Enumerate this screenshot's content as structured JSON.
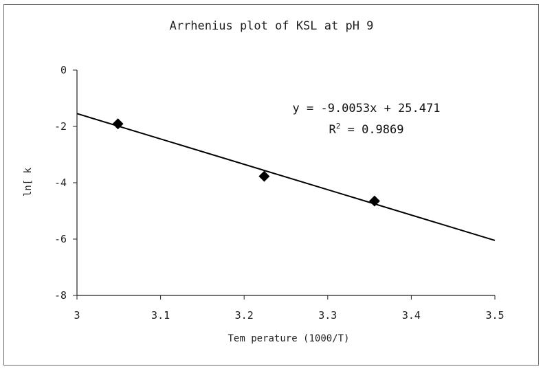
{
  "chart_data": {
    "type": "scatter",
    "title": "Arrhenius plot of KSL at pH 9",
    "xlabel": "Tem perature (1000/T)",
    "ylabel": "ln[ k",
    "xlim": [
      3,
      3.5
    ],
    "ylim": [
      -8,
      0
    ],
    "x_ticks": [
      "3",
      "3.1",
      "3.2",
      "3.3",
      "3.4",
      "3.5"
    ],
    "y_ticks": [
      "0",
      "-2",
      "-4",
      "-6",
      "-8"
    ],
    "grid": false,
    "legend": "none",
    "series": [
      {
        "points": [
          {
            "x": 3.049,
            "y": -1.91
          },
          {
            "x": 3.224,
            "y": -3.77
          },
          {
            "x": 3.356,
            "y": -4.65
          }
        ],
        "marker": "diamond",
        "color": "#000000"
      }
    ],
    "trendline": {
      "slope": -9.0053,
      "intercept": 25.471,
      "equation": "y = -9.0053x + 25.471",
      "r2_prefix": "R",
      "r2_sup": "2",
      "r2_value": " = 0.9869",
      "color": "#000000"
    }
  }
}
